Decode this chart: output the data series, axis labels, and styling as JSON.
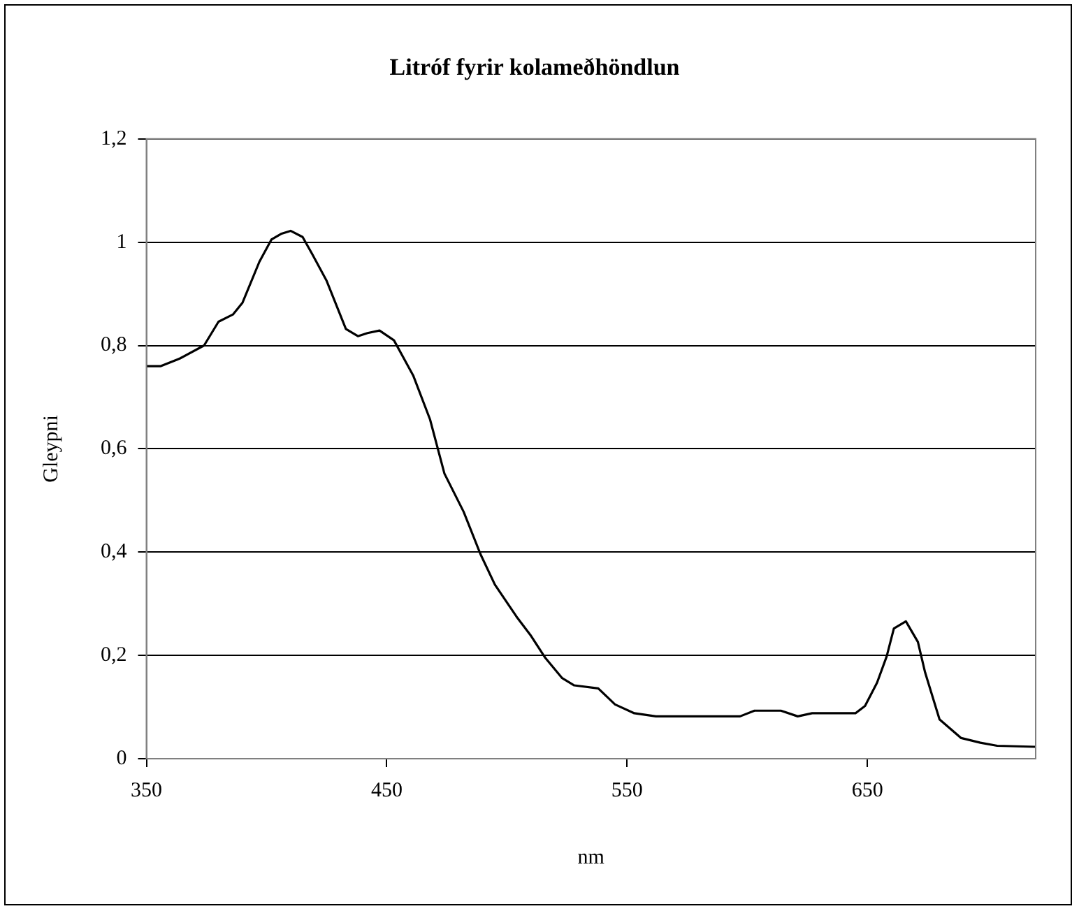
{
  "chart_data": {
    "type": "line",
    "title": "Litróf fyrir kolameðhöndlun",
    "xlabel": "nm",
    "ylabel": "Gleypni",
    "x": [
      350,
      356,
      364,
      374,
      380,
      386,
      390,
      397,
      402,
      406,
      410,
      415,
      419,
      425,
      433,
      438,
      442,
      447,
      453,
      461,
      468,
      474,
      482,
      489,
      495,
      504,
      510,
      516,
      523,
      528,
      538,
      545,
      553,
      562,
      577,
      597,
      603,
      614,
      621,
      627,
      645,
      649,
      654,
      658,
      661,
      666,
      671,
      674,
      680,
      689,
      697,
      704,
      720
    ],
    "series": [
      {
        "color": "#000000",
        "values": [
          0.76,
          0.76,
          0.775,
          0.8,
          0.846,
          0.86,
          0.883,
          0.962,
          1.005,
          1.016,
          1.022,
          1.01,
          0.977,
          0.925,
          0.832,
          0.818,
          0.824,
          0.829,
          0.81,
          0.742,
          0.657,
          0.552,
          0.478,
          0.396,
          0.337,
          0.275,
          0.238,
          0.195,
          0.156,
          0.142,
          0.136,
          0.105,
          0.088,
          0.082,
          0.082,
          0.082,
          0.093,
          0.093,
          0.082,
          0.088,
          0.088,
          0.102,
          0.147,
          0.198,
          0.252,
          0.266,
          0.226,
          0.167,
          0.076,
          0.04,
          0.031,
          0.025,
          0.023
        ]
      }
    ],
    "xlim": [
      350,
      720
    ],
    "xticks": [
      350,
      450,
      550,
      650
    ],
    "ylim": [
      0,
      1.2
    ],
    "yticks": [
      {
        "value": 0,
        "label": "0"
      },
      {
        "value": 0.2,
        "label": "0,2"
      },
      {
        "value": 0.4,
        "label": "0,4"
      },
      {
        "value": 0.6,
        "label": "0,6"
      },
      {
        "value": 0.8,
        "label": "0,8"
      },
      {
        "value": 1,
        "label": "1"
      },
      {
        "value": 1.2,
        "label": "1,2"
      }
    ],
    "grid": "y",
    "legend": false,
    "marker": "none",
    "line_style": "solid"
  }
}
